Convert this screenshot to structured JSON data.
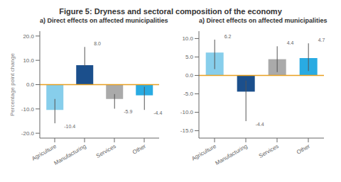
{
  "chart_data": [
    {
      "type": "bar",
      "title": "Figure 5: Dryness and sectoral composition of the economy",
      "subtitle": "a) Direct effects on affected municipalities",
      "ylabel": "Percentage point change",
      "categories": [
        "Agriculture",
        "Manufacturing",
        "Services",
        "Other"
      ],
      "values": [
        -10.4,
        8.0,
        -5.9,
        -4.4
      ],
      "value_labels": [
        "-10.4",
        "8.0",
        "-5.9",
        "-4.4"
      ],
      "err_minus": [
        5.5,
        0.5,
        4.0,
        6.0
      ],
      "err_plus": [
        4.5,
        7.5,
        2.0,
        3.5
      ],
      "colors": [
        "#87CEEB",
        "#1B4F8C",
        "#AAAAAA",
        "#29ABE2"
      ],
      "ylim": [
        -22,
        22
      ],
      "yticks": [
        {
          "value": -20,
          "label": "-20.0"
        },
        {
          "value": -10,
          "label": "-10.0"
        },
        {
          "value": 0,
          "label": "0.0"
        },
        {
          "value": 10,
          "label": "10.0"
        },
        {
          "value": 20,
          "label": "20.0"
        }
      ],
      "grid": false,
      "data_labels": true
    },
    {
      "type": "bar",
      "subtitle": "a) Direct effects on affected municipalities",
      "categories": [
        "Agriculture",
        "Manufacturing",
        "Services",
        "Other"
      ],
      "values": [
        6.2,
        -4.4,
        4.4,
        4.7
      ],
      "value_labels": [
        "6.2",
        "-4.4",
        "4.4",
        "4.7"
      ],
      "err_minus": [
        4.5,
        8.0,
        3.5,
        3.5
      ],
      "err_plus": [
        3.5,
        3.0,
        3.5,
        4.0
      ],
      "colors": [
        "#87CEEB",
        "#1B4F8C",
        "#AAAAAA",
        "#29ABE2"
      ],
      "ylim": [
        -17,
        12
      ],
      "yticks": [
        {
          "value": -15,
          "label": "-15.0"
        },
        {
          "value": -10,
          "label": "-10.0"
        },
        {
          "value": -5,
          "label": "-5.0"
        },
        {
          "value": 0,
          "label": "0.0"
        },
        {
          "value": 5,
          "label": "5.0"
        },
        {
          "value": 10,
          "label": "10.0"
        }
      ],
      "grid": false,
      "data_labels": true
    }
  ]
}
